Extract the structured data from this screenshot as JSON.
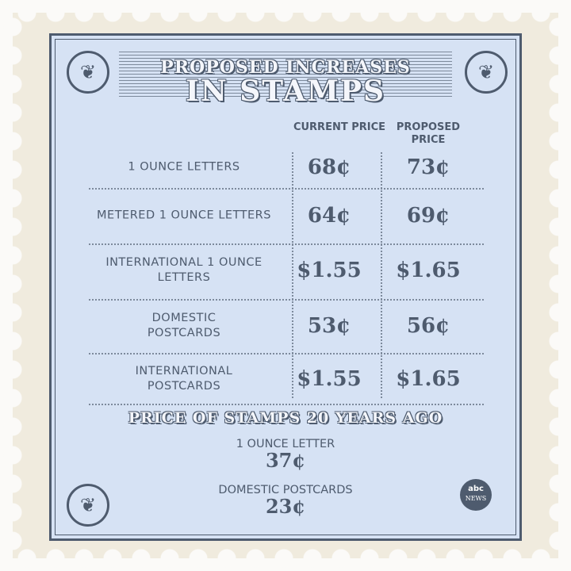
{
  "title": {
    "line1": "PROPOSED INCREASES",
    "line2": "IN STAMPS"
  },
  "columns": {
    "current": "CURRENT PRICE",
    "proposed": "PROPOSED PRICE"
  },
  "rows": [
    {
      "label": "1 OUNCE LETTERS",
      "current": "68¢",
      "proposed": "73¢"
    },
    {
      "label": "METERED 1 OUNCE LETTERS",
      "current": "64¢",
      "proposed": "69¢"
    },
    {
      "label": "INTERNATIONAL 1 OUNCE LETTERS",
      "current": "$1.55",
      "proposed": "$1.65"
    },
    {
      "label": "DOMESTIC POSTCARDS",
      "current": "53¢",
      "proposed": "56¢"
    },
    {
      "label": "INTERNATIONAL POSTCARDS",
      "current": "$1.55",
      "proposed": "$1.65"
    }
  ],
  "history": {
    "heading": "PRICE OF STAMPS 20 YEARS AGO",
    "items": [
      {
        "label": "1 OUNCE LETTER",
        "price": "37¢"
      },
      {
        "label": "DOMESTIC POSTCARDS",
        "price": "23¢"
      }
    ]
  },
  "logo": {
    "line1": "abc",
    "line2": "NEWS"
  },
  "colors": {
    "stamp": "#f0ebde",
    "panel": "#d6e2f4",
    "ink": "#4e5b6e"
  }
}
